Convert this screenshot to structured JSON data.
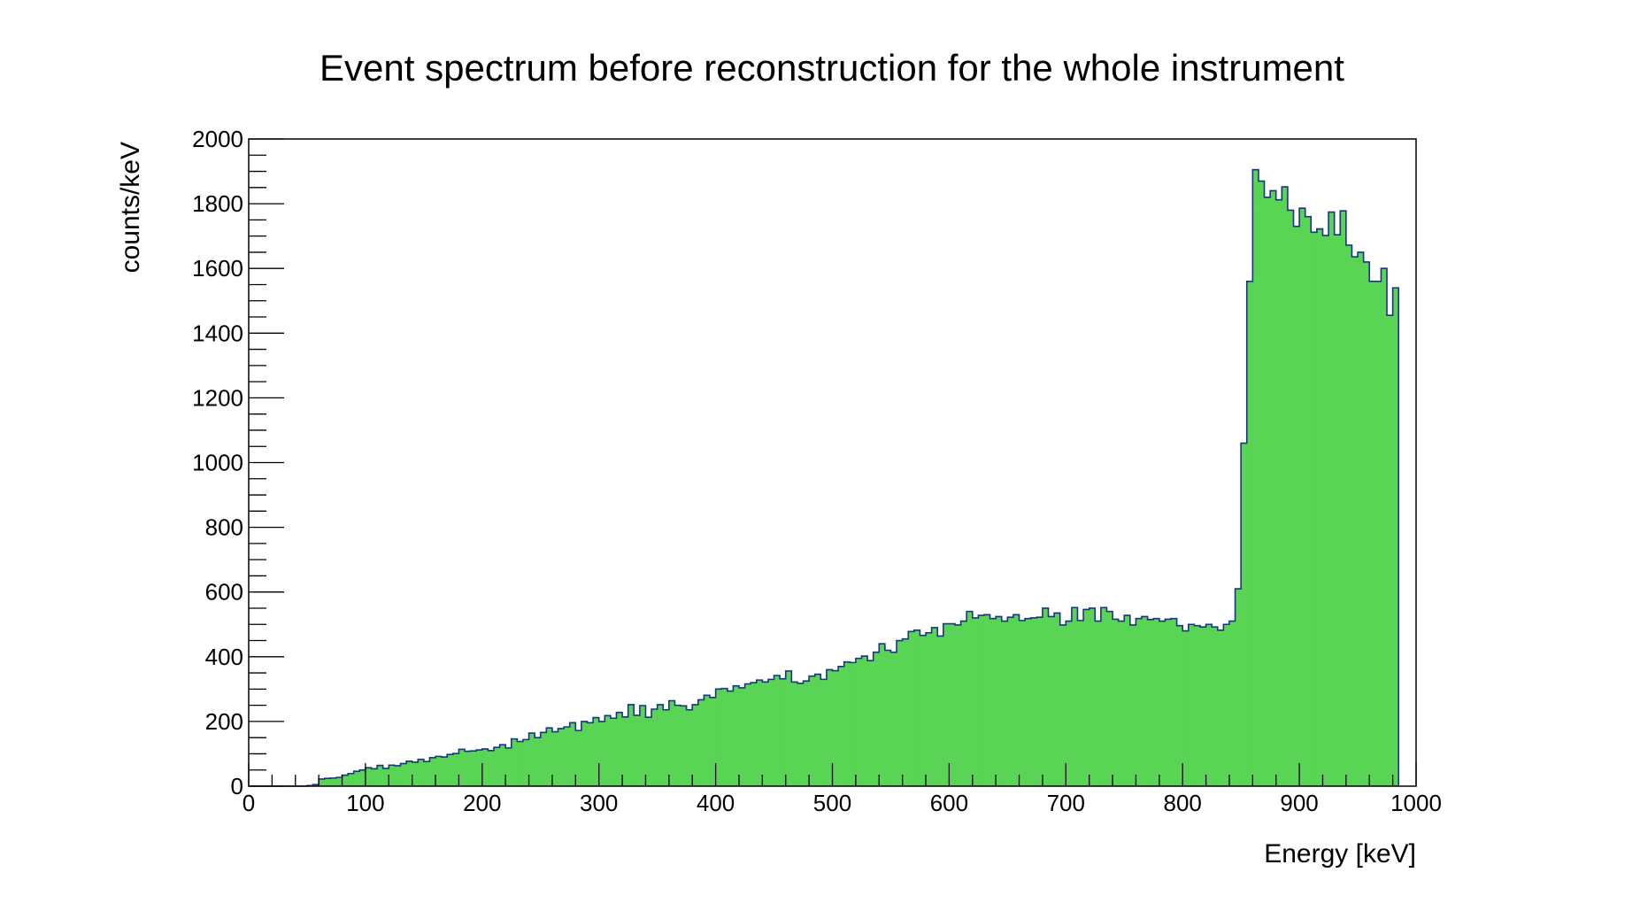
{
  "chart_data": {
    "type": "bar",
    "title": "Event spectrum before reconstruction for the whole instrument",
    "xlabel": "Energy [keV]",
    "ylabel": "counts/keV",
    "xlim": [
      0,
      1000
    ],
    "ylim": [
      0,
      2000
    ],
    "grid": false,
    "legend": "none",
    "bin_width": 5,
    "x_ticks": [
      "0",
      "100",
      "200",
      "300",
      "400",
      "500",
      "600",
      "700",
      "800",
      "900",
      "1000"
    ],
    "y_ticks": [
      "0",
      "200",
      "400",
      "600",
      "800",
      "1000",
      "1200",
      "1400",
      "1600",
      "1800",
      "2000"
    ],
    "values": [
      0,
      0,
      0,
      0,
      0,
      0,
      0,
      0,
      0,
      0,
      2,
      5,
      22,
      24,
      25,
      27,
      34,
      39,
      46,
      50,
      57,
      54,
      64,
      55,
      65,
      63,
      70,
      77,
      74,
      83,
      76,
      88,
      92,
      90,
      98,
      101,
      114,
      108,
      109,
      112,
      115,
      110,
      120,
      128,
      118,
      146,
      138,
      144,
      164,
      150,
      166,
      180,
      168,
      178,
      183,
      196,
      172,
      200,
      196,
      212,
      200,
      218,
      210,
      228,
      214,
      252,
      219,
      249,
      213,
      238,
      252,
      236,
      264,
      250,
      248,
      236,
      252,
      267,
      281,
      274,
      300,
      302,
      294,
      310,
      304,
      316,
      320,
      328,
      322,
      330,
      342,
      332,
      356,
      322,
      318,
      325,
      340,
      346,
      330,
      360,
      357,
      370,
      384,
      382,
      395,
      402,
      388,
      414,
      440,
      420,
      414,
      450,
      455,
      478,
      482,
      466,
      474,
      490,
      464,
      502,
      502,
      498,
      510,
      540,
      520,
      528,
      530,
      518,
      524,
      510,
      522,
      530,
      512,
      518,
      520,
      522,
      550,
      524,
      535,
      498,
      510,
      552,
      512,
      546,
      550,
      510,
      552,
      540,
      516,
      510,
      528,
      498,
      518,
      524,
      515,
      518,
      510,
      516,
      518,
      496,
      480,
      500,
      496,
      492,
      500,
      492,
      482,
      500,
      510,
      610,
      1060,
      1560,
      1905,
      1870,
      1820,
      1840,
      1812,
      1852,
      1780,
      1730,
      1786,
      1760,
      1712,
      1722,
      1702,
      1774,
      1704,
      1778,
      1672,
      1636,
      1650,
      1620,
      1560,
      1560,
      1600,
      1455,
      1540
    ]
  }
}
